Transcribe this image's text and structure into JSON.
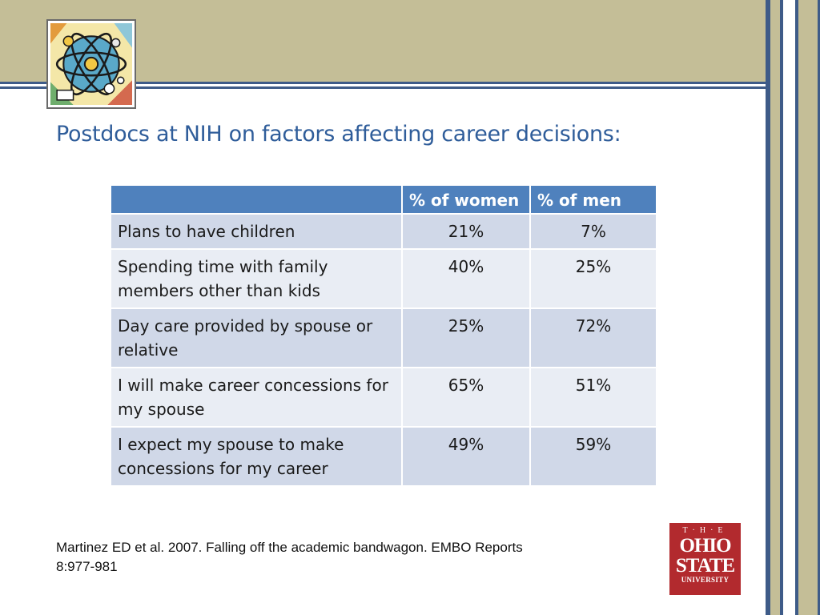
{
  "slide": {
    "title": "Postdocs at NIH on factors affecting career decisions:",
    "colors": {
      "accent_blue": "#3e5b88",
      "band_tan": "#c4be97",
      "table_header": "#4f81bd",
      "title_text": "#2f5d9a",
      "logo_red": "#b22a2e"
    }
  },
  "table": {
    "headers": [
      "",
      "% of women",
      "% of men"
    ],
    "rows": [
      {
        "label": "Plans to have children",
        "women": "21%",
        "men": "7%"
      },
      {
        "label": "Spending time with family members other than kids",
        "women": "40%",
        "men": "25%"
      },
      {
        "label": "Day care provided by spouse or relative",
        "women": "25%",
        "men": "72%"
      },
      {
        "label": "I will make career concessions for my spouse",
        "women": "65%",
        "men": "51%"
      },
      {
        "label": "I expect my spouse to make concessions for my career",
        "women": "49%",
        "men": "59%"
      }
    ]
  },
  "citation": {
    "line1": "Martinez ED et al. 2007. Falling off the academic bandwagon. EMBO Reports",
    "line2": "8:977-981"
  },
  "logo": {
    "the": "T·H·E",
    "ohio": "OHIO",
    "state": "STATE",
    "university": "UNIVERSITY"
  },
  "icons": {
    "clipart": "science-atom-clipart-icon"
  }
}
